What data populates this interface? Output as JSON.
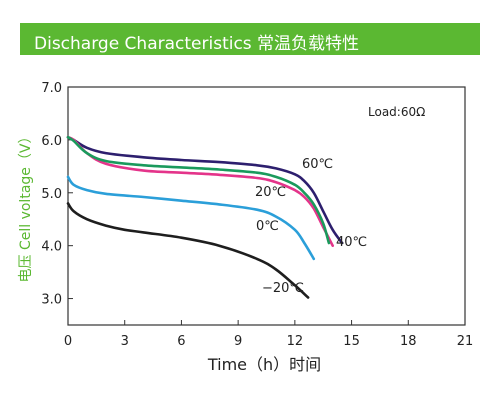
{
  "header": {
    "title": "Discharge Characteristics   常温负载特性"
  },
  "colors": {
    "header_bg": "#5bb832",
    "ylabel": "#5bb832"
  },
  "chart_data": {
    "type": "line",
    "title": "Discharge Characteristics   常温负载特性",
    "xlabel": "Time（h）时间",
    "ylabel": "电压 Cell voltage（V）",
    "xlim": [
      0,
      21
    ],
    "ylim": [
      2.5,
      7.0
    ],
    "x_ticks": [
      0,
      3,
      6,
      9,
      12,
      15,
      18,
      21
    ],
    "y_ticks": [
      3.0,
      4.0,
      5.0,
      6.0,
      7.0
    ],
    "x_tick_labels": [
      "0",
      "3",
      "6",
      "9",
      "12",
      "15",
      "18",
      "21"
    ],
    "y_tick_labels": [
      "3.0",
      "4.0",
      "5.0",
      "6.0",
      "7.0"
    ],
    "grid": false,
    "annotation": "Load:60Ω",
    "series": [
      {
        "name": "60℃",
        "color": "#2d1f6e",
        "x": [
          0,
          0.3,
          1,
          2,
          4,
          6,
          8,
          10,
          11,
          12,
          12.5,
          13,
          13.5,
          14,
          14.5
        ],
        "y": [
          6.05,
          6.0,
          5.85,
          5.75,
          5.67,
          5.62,
          5.58,
          5.52,
          5.46,
          5.35,
          5.22,
          5.0,
          4.65,
          4.3,
          4.05
        ]
      },
      {
        "name": "40℃",
        "color": "#e4348a",
        "x": [
          0,
          0.3,
          1,
          2,
          4,
          6,
          8,
          10,
          11,
          12,
          12.5,
          13,
          13.5,
          14
        ],
        "y": [
          6.05,
          6.0,
          5.75,
          5.55,
          5.42,
          5.38,
          5.34,
          5.28,
          5.2,
          5.05,
          4.92,
          4.7,
          4.35,
          4.0
        ]
      },
      {
        "name": "20℃",
        "color": "#1a9a5c",
        "x": [
          0,
          0.3,
          1,
          2,
          4,
          6,
          8,
          10,
          11,
          12,
          12.5,
          13,
          13.5,
          13.8
        ],
        "y": [
          6.05,
          5.98,
          5.75,
          5.6,
          5.52,
          5.48,
          5.44,
          5.38,
          5.3,
          5.15,
          5.0,
          4.78,
          4.42,
          4.05
        ]
      },
      {
        "name": "0℃",
        "color": "#2b9fd9",
        "x": [
          0,
          0.3,
          1,
          2,
          4,
          6,
          8,
          10,
          11,
          12,
          12.5,
          13
        ],
        "y": [
          5.3,
          5.15,
          5.05,
          4.98,
          4.92,
          4.85,
          4.78,
          4.68,
          4.55,
          4.3,
          4.05,
          3.75
        ]
      },
      {
        "name": "-20℃",
        "color": "#1e1e1e",
        "x": [
          0,
          0.3,
          1,
          2,
          3,
          4,
          6,
          8,
          10,
          11,
          12,
          12.7
        ],
        "y": [
          4.8,
          4.65,
          4.5,
          4.38,
          4.3,
          4.25,
          4.15,
          4.0,
          3.75,
          3.55,
          3.25,
          3.02
        ]
      }
    ],
    "series_labels": [
      "60℃",
      "40℃",
      "20℃",
      "0℃",
      "−20℃"
    ]
  }
}
